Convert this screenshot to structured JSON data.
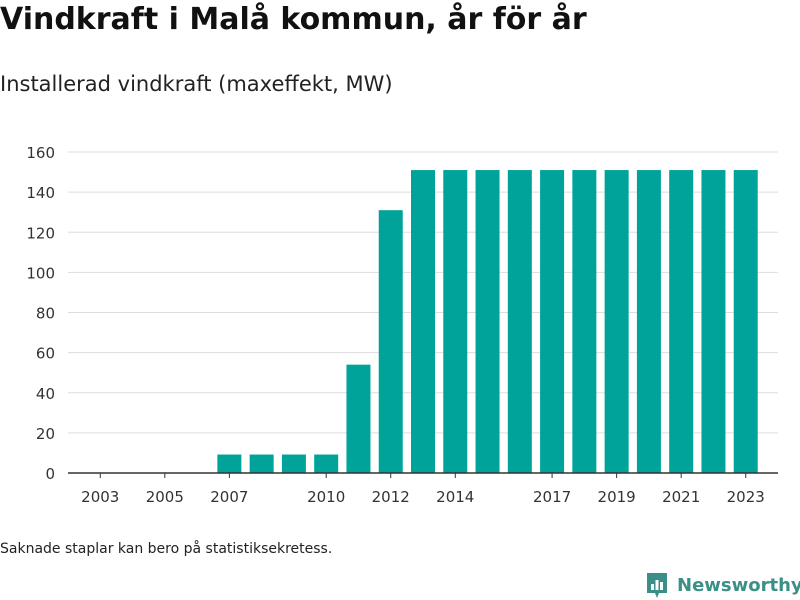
{
  "header": {
    "title": "Vindkraft i Malå kommun, år för år",
    "subtitle": "Installerad vindkraft (maxeffekt, MW)"
  },
  "footer": {
    "note": "Saknade staplar kan bero på statistiksekretess.",
    "brand": "Newsworthy"
  },
  "colors": {
    "bar": "#00a39a",
    "grid": "#dddddd",
    "axis": "#333333",
    "brand": "#3a8f86"
  },
  "chart_data": {
    "type": "bar",
    "title": "Vindkraft i Malå kommun, år för år",
    "subtitle": "Installerad vindkraft (maxeffekt, MW)",
    "xlabel": "",
    "ylabel": "",
    "ylim": [
      0,
      160
    ],
    "yticks": [
      0,
      20,
      40,
      60,
      80,
      100,
      120,
      140,
      160
    ],
    "xlim": [
      2002,
      2024
    ],
    "xticks": [
      2003,
      2005,
      2007,
      2010,
      2012,
      2014,
      2017,
      2019,
      2021,
      2023
    ],
    "grid": true,
    "legend": "none",
    "x": [
      2007,
      2008,
      2009,
      2010,
      2011,
      2012,
      2013,
      2014,
      2015,
      2016,
      2017,
      2018,
      2019,
      2020,
      2021,
      2022,
      2023
    ],
    "values": [
      9.2,
      9.2,
      9.2,
      9.2,
      54,
      131,
      151,
      151,
      151,
      151,
      151,
      151,
      151,
      151,
      151,
      151,
      151
    ]
  }
}
